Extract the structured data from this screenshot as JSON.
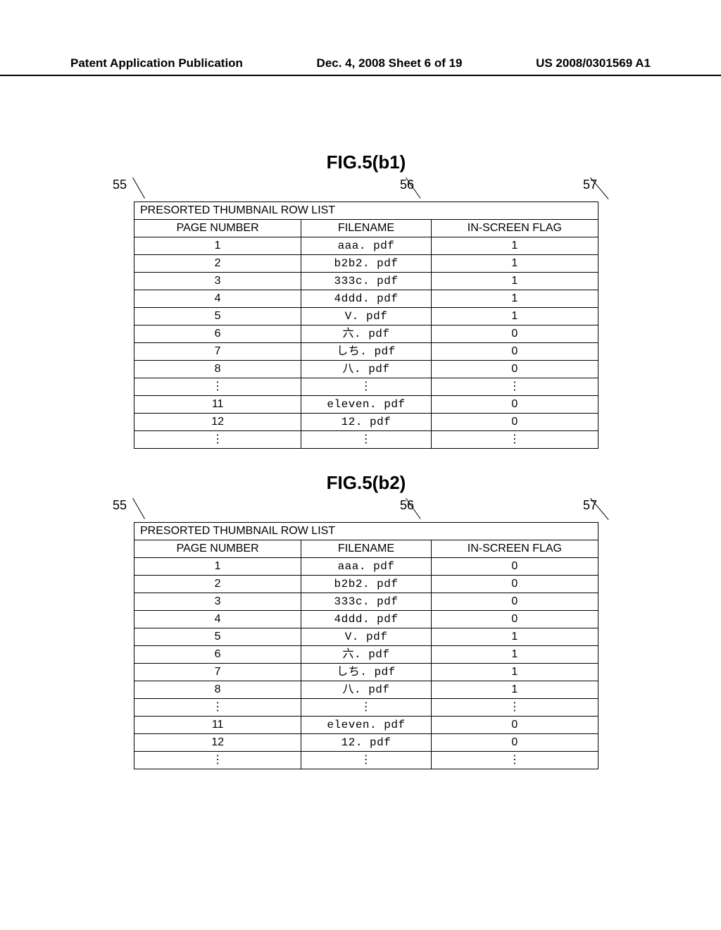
{
  "header": {
    "left": "Patent Application Publication",
    "center": "Dec. 4, 2008  Sheet 6 of 19",
    "right": "US 2008/0301569 A1"
  },
  "callouts": {
    "c55": "55",
    "c56": "56",
    "c57": "57"
  },
  "table_common": {
    "title": "PRESORTED THUMBNAIL ROW LIST",
    "col_page": "PAGE NUMBER",
    "col_file": "FILENAME",
    "col_flag": "IN-SCREEN FLAG"
  },
  "fig_b1": {
    "caption": "FIG.5(b1)",
    "rows": [
      {
        "page": "1",
        "file": "aaa. pdf",
        "flag": "1"
      },
      {
        "page": "2",
        "file": "b2b2. pdf",
        "flag": "1"
      },
      {
        "page": "3",
        "file": "333c. pdf",
        "flag": "1"
      },
      {
        "page": "4",
        "file": "4ddd. pdf",
        "flag": "1"
      },
      {
        "page": "5",
        "file": "V. pdf",
        "flag": "1"
      },
      {
        "page": "6",
        "file": "六. pdf",
        "flag": "0"
      },
      {
        "page": "7",
        "file": "しち. pdf",
        "flag": "0"
      },
      {
        "page": "8",
        "file": "八. pdf",
        "flag": "0"
      },
      {
        "page": "⋮",
        "file": "⋮",
        "flag": "⋮"
      },
      {
        "page": "11",
        "file": "eleven. pdf",
        "flag": "0"
      },
      {
        "page": "12",
        "file": "12. pdf",
        "flag": "0"
      },
      {
        "page": "⋮",
        "file": "⋮",
        "flag": "⋮"
      }
    ]
  },
  "fig_b2": {
    "caption": "FIG.5(b2)",
    "rows": [
      {
        "page": "1",
        "file": "aaa. pdf",
        "flag": "0"
      },
      {
        "page": "2",
        "file": "b2b2. pdf",
        "flag": "0"
      },
      {
        "page": "3",
        "file": "333c. pdf",
        "flag": "0"
      },
      {
        "page": "4",
        "file": "4ddd. pdf",
        "flag": "0"
      },
      {
        "page": "5",
        "file": "V. pdf",
        "flag": "1"
      },
      {
        "page": "6",
        "file": "六. pdf",
        "flag": "1"
      },
      {
        "page": "7",
        "file": "しち. pdf",
        "flag": "1"
      },
      {
        "page": "8",
        "file": "八. pdf",
        "flag": "1"
      },
      {
        "page": "⋮",
        "file": "⋮",
        "flag": "⋮"
      },
      {
        "page": "11",
        "file": "eleven. pdf",
        "flag": "0"
      },
      {
        "page": "12",
        "file": "12. pdf",
        "flag": "0"
      },
      {
        "page": "⋮",
        "file": "⋮",
        "flag": "⋮"
      }
    ]
  }
}
